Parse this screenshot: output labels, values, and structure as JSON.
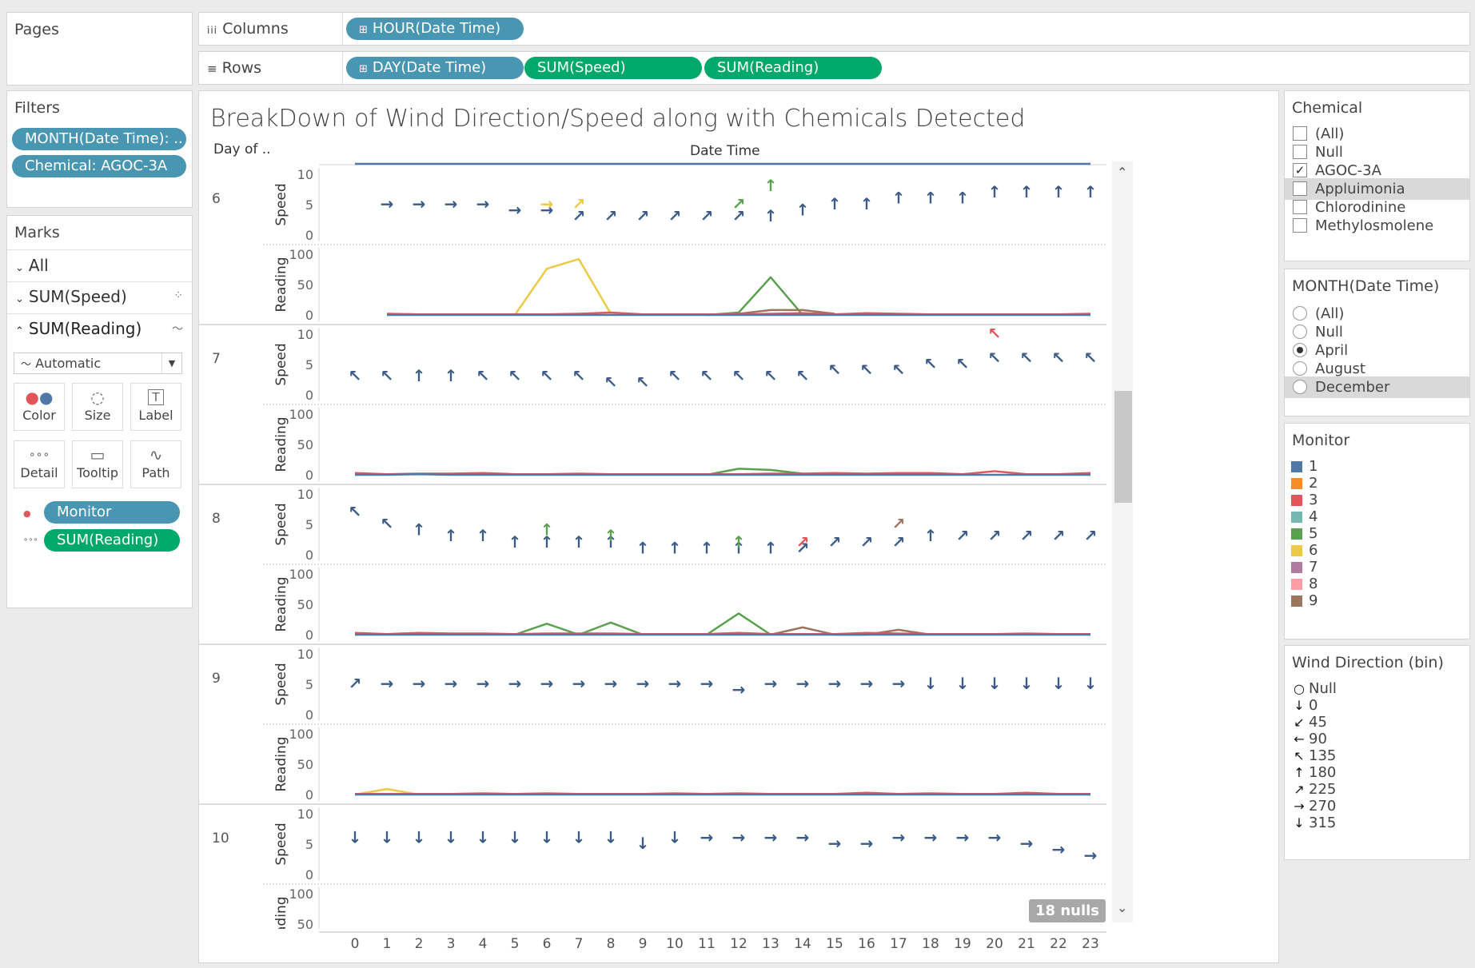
{
  "pages": {
    "title": "Pages"
  },
  "shelves": {
    "columns_label": "Columns",
    "rows_label": "Rows",
    "columns_pills": [
      {
        "label": "HOUR(Date Time)",
        "color": "#4996b2"
      }
    ],
    "rows_pills": [
      {
        "label": "DAY(Date Time)",
        "color": "#4996b2"
      },
      {
        "label": "SUM(Speed)",
        "color": "#00a86b"
      },
      {
        "label": "SUM(Reading)",
        "color": "#00a86b"
      }
    ]
  },
  "filters": {
    "title": "Filters",
    "items": [
      "MONTH(Date Time): ..",
      "Chemical: AGOC-3A"
    ]
  },
  "marks": {
    "title": "Marks",
    "rows": [
      "All",
      "SUM(Speed)",
      "SUM(Reading)"
    ],
    "mark_type": "Automatic",
    "buttons": [
      "Color",
      "Size",
      "Label",
      "Detail",
      "Tooltip",
      "Path"
    ],
    "fields": [
      {
        "label": "Monitor",
        "color": "#4996b2"
      },
      {
        "label": "SUM(Reading)",
        "color": "#00a86b"
      }
    ]
  },
  "view": {
    "title": "BreakDown of Wind Direction/Speed along with Chemicals Detected",
    "row_header": "Day of ..",
    "col_header": "Date Time",
    "speed_label": "Speed",
    "reading_label": "Reading",
    "nulls_badge": "18 nulls"
  },
  "chemical_filter": {
    "title": "Chemical",
    "options": [
      {
        "label": "(All)",
        "checked": false
      },
      {
        "label": "Null",
        "checked": false
      },
      {
        "label": "AGOC-3A",
        "checked": true
      },
      {
        "label": "Appluimonia",
        "checked": false
      },
      {
        "label": "Chlorodinine",
        "checked": false
      },
      {
        "label": "Methylosmolene",
        "checked": false
      }
    ]
  },
  "month_filter": {
    "title": "MONTH(Date Time)",
    "options": [
      {
        "label": "(All)",
        "selected": false
      },
      {
        "label": "Null",
        "selected": false
      },
      {
        "label": "April",
        "selected": true
      },
      {
        "label": "August",
        "selected": false
      },
      {
        "label": "December",
        "selected": false
      }
    ]
  },
  "monitor_legend": {
    "title": "Monitor",
    "items": [
      {
        "label": "1",
        "color": "#4e79a7"
      },
      {
        "label": "2",
        "color": "#f28e2b"
      },
      {
        "label": "3",
        "color": "#e15759"
      },
      {
        "label": "4",
        "color": "#76b7b2"
      },
      {
        "label": "5",
        "color": "#59a14f"
      },
      {
        "label": "6",
        "color": "#edc948"
      },
      {
        "label": "7",
        "color": "#b07aa1"
      },
      {
        "label": "8",
        "color": "#ff9da7"
      },
      {
        "label": "9",
        "color": "#9c755f"
      }
    ]
  },
  "wind_legend": {
    "title": "Wind Direction (bin)",
    "items": [
      {
        "label": "Null",
        "glyph": "○"
      },
      {
        "label": "0",
        "glyph": "↓"
      },
      {
        "label": "45",
        "glyph": "↙"
      },
      {
        "label": "90",
        "glyph": "←"
      },
      {
        "label": "135",
        "glyph": "↖"
      },
      {
        "label": "180",
        "glyph": "↑"
      },
      {
        "label": "225",
        "glyph": "↗"
      },
      {
        "label": "270",
        "glyph": "→"
      },
      {
        "label": "315",
        "glyph": "↓"
      }
    ]
  },
  "chart_data": {
    "type": "line",
    "x_label": "Date Time",
    "x": [
      0,
      1,
      2,
      3,
      4,
      5,
      6,
      7,
      8,
      9,
      10,
      11,
      12,
      13,
      14,
      15,
      16,
      17,
      18,
      19,
      20,
      21,
      22,
      23
    ],
    "speed_axis": {
      "ticks": [
        0,
        5,
        10
      ],
      "ylim": [
        0,
        10
      ]
    },
    "reading_axis": {
      "ticks": [
        0,
        50,
        100
      ],
      "ylim": [
        0,
        100
      ]
    },
    "days": [
      {
        "day": "6",
        "wind_glyphs": [
          "",
          "→",
          "→",
          "→",
          "→",
          "→",
          "→",
          "↗",
          "↗",
          "↗",
          "↗",
          "↗",
          "↗",
          "↑",
          "↑",
          "↑",
          "↑",
          "↑",
          "↑",
          "↑",
          "↑",
          "↑",
          "↑",
          "↑"
        ],
        "speed": [
          null,
          5,
          5,
          5,
          5,
          4,
          4,
          3,
          3,
          3,
          3,
          3,
          3,
          3,
          4,
          5,
          5,
          6,
          6,
          6,
          7,
          7,
          7,
          7
        ],
        "extra_marks": [
          {
            "x": 6,
            "glyph": "→",
            "color": "#edc948",
            "speed": 5
          },
          {
            "x": 7,
            "glyph": "↗",
            "color": "#edc948",
            "speed": 5
          },
          {
            "x": 12,
            "glyph": "↗",
            "color": "#59a14f",
            "speed": 5
          },
          {
            "x": 13,
            "glyph": "↑",
            "color": "#59a14f",
            "speed": 8
          }
        ],
        "reading_series": [
          {
            "name": "6",
            "color": "#edc948",
            "values": [
              null,
              null,
              null,
              null,
              null,
              0,
              76,
              92,
              2,
              null,
              null,
              null,
              null,
              null,
              null,
              null,
              null,
              null,
              null,
              null,
              null,
              null,
              null,
              null
            ]
          },
          {
            "name": "5",
            "color": "#59a14f",
            "values": [
              null,
              null,
              null,
              null,
              null,
              null,
              null,
              null,
              null,
              null,
              null,
              0,
              4,
              62,
              0,
              null,
              null,
              null,
              null,
              null,
              null,
              null,
              null,
              null
            ]
          },
          {
            "name": "9",
            "color": "#9c755f",
            "values": [
              null,
              null,
              null,
              null,
              null,
              null,
              null,
              null,
              null,
              null,
              null,
              0,
              2,
              8,
              8,
              2,
              null,
              null,
              null,
              null,
              null,
              null,
              null,
              null
            ]
          },
          {
            "name": "3",
            "color": "#e15759",
            "values": [
              null,
              2,
              1,
              1,
              1,
              1,
              1,
              2,
              4,
              1,
              1,
              1,
              1,
              2,
              3,
              1,
              3,
              2,
              1,
              1,
              1,
              1,
              1,
              2
            ]
          },
          {
            "name": "1",
            "color": "#4e79a7",
            "values": [
              null,
              0,
              0,
              0,
              0,
              0,
              0,
              0,
              0,
              0,
              0,
              0,
              0,
              0,
              0,
              0,
              0,
              0,
              0,
              0,
              0,
              0,
              0,
              0
            ]
          }
        ]
      },
      {
        "day": "7",
        "wind_glyphs": [
          "↖",
          "↖",
          "↑",
          "↑",
          "↖",
          "↖",
          "↖",
          "↖",
          "↖",
          "↖",
          "↖",
          "↖",
          "↖",
          "↖",
          "↖",
          "↖",
          "↖",
          "↖",
          "↖",
          "↖",
          "↖",
          "↖",
          "↖",
          "↖"
        ],
        "speed": [
          3,
          3,
          3,
          3,
          3,
          3,
          3,
          3,
          2,
          2,
          3,
          3,
          3,
          3,
          3,
          4,
          4,
          4,
          5,
          5,
          6,
          6,
          6,
          6
        ],
        "extra_marks": [
          {
            "x": 20,
            "glyph": "↖",
            "color": "#e15759",
            "speed": 10
          }
        ],
        "reading_series": [
          {
            "name": "5",
            "color": "#59a14f",
            "values": [
              null,
              null,
              null,
              null,
              null,
              null,
              null,
              null,
              null,
              null,
              null,
              0,
              10,
              8,
              2,
              null,
              null,
              null,
              null,
              null,
              null,
              null,
              null,
              null
            ]
          },
          {
            "name": "3",
            "color": "#e15759",
            "values": [
              3,
              1,
              2,
              2,
              3,
              1,
              1,
              2,
              1,
              1,
              1,
              1,
              1,
              2,
              2,
              3,
              2,
              3,
              3,
              1,
              6,
              1,
              1,
              3
            ]
          },
          {
            "name": "1",
            "color": "#4e79a7",
            "values": [
              0,
              0,
              1,
              0,
              0,
              0,
              0,
              0,
              0,
              0,
              0,
              0,
              0,
              0,
              0,
              0,
              0,
              0,
              0,
              0,
              0,
              0,
              0,
              0
            ]
          }
        ]
      },
      {
        "day": "8",
        "wind_glyphs": [
          "↖",
          "↖",
          "↑",
          "↑",
          "↑",
          "↑",
          "↑",
          "↑",
          "↑",
          "↑",
          "↑",
          "↑",
          "↑",
          "↑",
          "↗",
          "↗",
          "↗",
          "↗",
          "↑",
          "↗",
          "↗",
          "↗",
          "↗",
          "↗"
        ],
        "speed": [
          7,
          5,
          4,
          3,
          3,
          2,
          2,
          2,
          2,
          1,
          1,
          1,
          1,
          1,
          1,
          2,
          2,
          2,
          3,
          3,
          3,
          3,
          3,
          3
        ],
        "extra_marks": [
          {
            "x": 6,
            "glyph": "↑",
            "color": "#59a14f",
            "speed": 4
          },
          {
            "x": 8,
            "glyph": "↑",
            "color": "#59a14f",
            "speed": 3
          },
          {
            "x": 12,
            "glyph": "↑",
            "color": "#59a14f",
            "speed": 2
          },
          {
            "x": 14,
            "glyph": "↗",
            "color": "#e15759",
            "speed": 2
          },
          {
            "x": 17,
            "glyph": "↗",
            "color": "#9c755f",
            "speed": 5
          }
        ],
        "reading_series": [
          {
            "name": "5",
            "color": "#59a14f",
            "values": [
              null,
              null,
              null,
              null,
              null,
              0,
              18,
              0,
              20,
              0,
              null,
              0,
              35,
              0,
              null,
              null,
              null,
              null,
              null,
              null,
              null,
              null,
              null,
              null
            ]
          },
          {
            "name": "9",
            "color": "#9c755f",
            "values": [
              null,
              null,
              null,
              null,
              null,
              null,
              null,
              null,
              null,
              null,
              null,
              null,
              null,
              0,
              12,
              0,
              0,
              8,
              0,
              null,
              null,
              null,
              null,
              null
            ]
          },
          {
            "name": "3",
            "color": "#e15759",
            "values": [
              3,
              1,
              3,
              2,
              2,
              1,
              2,
              2,
              2,
              1,
              1,
              1,
              3,
              1,
              1,
              1,
              3,
              2,
              1,
              1,
              1,
              2,
              1,
              1
            ]
          },
          {
            "name": "1",
            "color": "#4e79a7",
            "values": [
              0,
              0,
              0,
              0,
              0,
              0,
              0,
              0,
              0,
              0,
              0,
              0,
              0,
              0,
              0,
              0,
              0,
              0,
              0,
              0,
              0,
              0,
              0,
              0
            ]
          }
        ]
      },
      {
        "day": "9",
        "wind_glyphs": [
          "↗",
          "→",
          "→",
          "→",
          "→",
          "→",
          "→",
          "→",
          "→",
          "→",
          "→",
          "→",
          "→",
          "→",
          "→",
          "→",
          "→",
          "→",
          "↓",
          "↓",
          "↓",
          "↓",
          "↓",
          "↓"
        ],
        "speed": [
          5,
          5,
          5,
          5,
          5,
          5,
          5,
          5,
          5,
          5,
          5,
          5,
          4,
          5,
          5,
          5,
          5,
          5,
          5,
          5,
          5,
          5,
          5,
          5
        ],
        "extra_marks": [],
        "reading_series": [
          {
            "name": "6",
            "color": "#edc948",
            "values": [
              0,
              9,
              0,
              null,
              null,
              null,
              null,
              null,
              null,
              null,
              null,
              null,
              null,
              null,
              null,
              null,
              null,
              null,
              null,
              null,
              null,
              null,
              null,
              null
            ]
          },
          {
            "name": "3",
            "color": "#e15759",
            "values": [
              1,
              1,
              1,
              1,
              2,
              1,
              2,
              1,
              1,
              1,
              2,
              1,
              2,
              1,
              1,
              1,
              3,
              1,
              2,
              1,
              1,
              3,
              1,
              1
            ]
          },
          {
            "name": "1",
            "color": "#4e79a7",
            "values": [
              0,
              0,
              0,
              0,
              0,
              0,
              0,
              0,
              0,
              0,
              0,
              0,
              0,
              0,
              0,
              0,
              0,
              0,
              0,
              0,
              0,
              0,
              0,
              0
            ]
          }
        ]
      },
      {
        "day": "10",
        "wind_glyphs": [
          "↓",
          "↓",
          "↓",
          "↓",
          "↓",
          "↓",
          "↓",
          "↓",
          "↓",
          "↓",
          "↓",
          "→",
          "→",
          "→",
          "→",
          "→",
          "→",
          "→",
          "→",
          "→",
          "→",
          "→",
          "→",
          "→"
        ],
        "speed": [
          6,
          6,
          6,
          6,
          6,
          6,
          6,
          6,
          6,
          5,
          6,
          6,
          6,
          6,
          6,
          5,
          5,
          6,
          6,
          6,
          6,
          5,
          4,
          3
        ],
        "extra_marks": [],
        "reading_series": []
      }
    ]
  }
}
